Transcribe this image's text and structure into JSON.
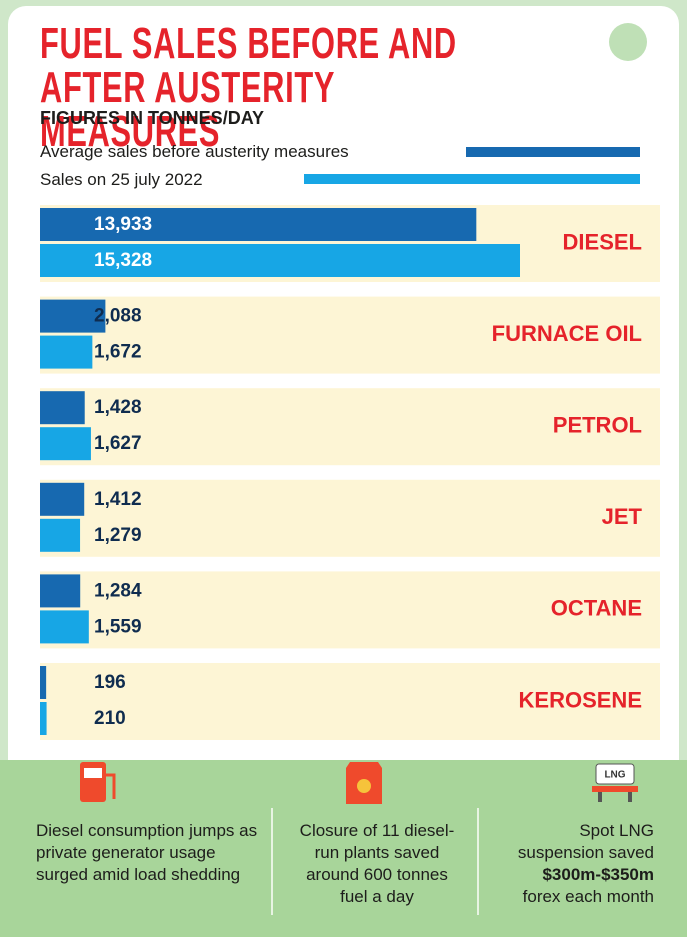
{
  "chart_data": {
    "type": "bar",
    "orientation": "horizontal",
    "title": "FUEL SALES BEFORE AND AFTER AUSTERITY MEASURES",
    "subtitle": "FIGURES IN TONNES/DAY",
    "categories": [
      "DIESEL",
      "FURNACE OIL",
      "PETROL",
      "JET",
      "OCTANE",
      "KEROSENE"
    ],
    "series": [
      {
        "name": "Average sales before austerity measures",
        "color": "#1769b0",
        "values": [
          13933,
          2088,
          1428,
          1412,
          1284,
          196
        ],
        "value_labels": [
          "13,933",
          "2,088",
          "1,428",
          "1,412",
          "1,284",
          "196"
        ]
      },
      {
        "name": "Sales on 25 july 2022",
        "color": "#17a6e5",
        "values": [
          15328,
          1672,
          1627,
          1279,
          1559,
          210
        ],
        "value_labels": [
          "15,328",
          "1,672",
          "1,627",
          "1,279",
          "1,559",
          "210"
        ]
      }
    ]
  },
  "footer": [
    {
      "text": "Diesel consumption jumps as private generator usage surged amid load shedding"
    },
    {
      "text": "Closure of 11 diesel-run plants saved around 600 tonnes fuel a day"
    },
    {
      "text": "Spot LNG suspension saved",
      "highlight": "$300m-$350m",
      "after": "forex each month",
      "icon_label": "LNG"
    }
  ]
}
